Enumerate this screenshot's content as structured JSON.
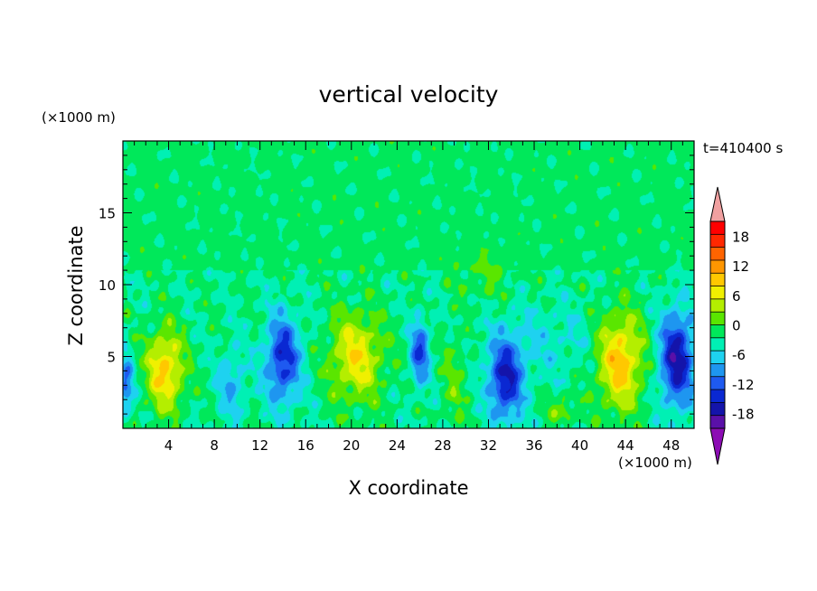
{
  "chart_data": {
    "type": "heatmap",
    "title": "vertical velocity",
    "xlabel": "X coordinate",
    "ylabel": "Z coordinate",
    "x_unit": "(×1000 m)",
    "y_unit": "(×1000 m)",
    "time_label": "t=410400 s",
    "xlim": [
      0,
      50
    ],
    "ylim": [
      0,
      20
    ],
    "x_ticks": [
      4,
      8,
      12,
      16,
      20,
      24,
      28,
      32,
      36,
      40,
      44,
      48
    ],
    "y_ticks": [
      5,
      10,
      15
    ],
    "colorbar": {
      "levels": [
        -21,
        -18,
        -15,
        -12,
        -9,
        -6,
        -3,
        0,
        3,
        6,
        9,
        12,
        15,
        18,
        21
      ],
      "tick_labels": [
        18,
        12,
        6,
        0,
        -6,
        -12,
        -18
      ],
      "colors": [
        "#8c0cb4",
        "#5a10a8",
        "#1414aa",
        "#0a28d2",
        "#1e5af0",
        "#1e96f0",
        "#1ed2f0",
        "#00f0b4",
        "#00e85a",
        "#5ae600",
        "#b4ee00",
        "#f0f000",
        "#ffc800",
        "#ff9600",
        "#ff6400",
        "#ff2800",
        "#ff0000",
        "#f0a0a0"
      ],
      "extend": "both"
    },
    "cells": [
      {
        "x": 3.7,
        "z": 4.0,
        "sx": 1.6,
        "sz": 2.8,
        "amp": 13
      },
      {
        "x": 20.4,
        "z": 5.0,
        "sx": 2.3,
        "sz": 3.0,
        "amp": 11
      },
      {
        "x": 43.5,
        "z": 4.7,
        "sx": 2.0,
        "sz": 3.3,
        "amp": 14
      },
      {
        "x": 29.0,
        "z": 3.5,
        "sx": 1.1,
        "sz": 3.5,
        "amp": 4
      },
      {
        "x": 38.5,
        "z": 1.3,
        "sx": 1.3,
        "sz": 1.0,
        "amp": 5
      },
      {
        "x": 31.5,
        "z": 10.5,
        "sx": 2.5,
        "sz": 1.8,
        "amp": 3
      },
      {
        "x": 14.0,
        "z": 4.8,
        "sx": 1.5,
        "sz": 3.0,
        "amp": -14
      },
      {
        "x": 26.0,
        "z": 5.3,
        "sx": 0.8,
        "sz": 2.2,
        "amp": -12
      },
      {
        "x": 33.5,
        "z": 3.3,
        "sx": 1.5,
        "sz": 2.8,
        "amp": -15
      },
      {
        "x": 48.5,
        "z": 4.8,
        "sx": 1.5,
        "sz": 3.2,
        "amp": -17
      },
      {
        "x": 0.3,
        "z": 3.0,
        "sx": 0.6,
        "sz": 2.0,
        "amp": -10
      },
      {
        "x": 9.5,
        "z": 3.0,
        "sx": 1.2,
        "sz": 2.5,
        "amp": -6
      },
      {
        "x": 37.0,
        "z": 6.0,
        "sx": 5.0,
        "sz": 2.5,
        "amp": -3
      }
    ]
  }
}
